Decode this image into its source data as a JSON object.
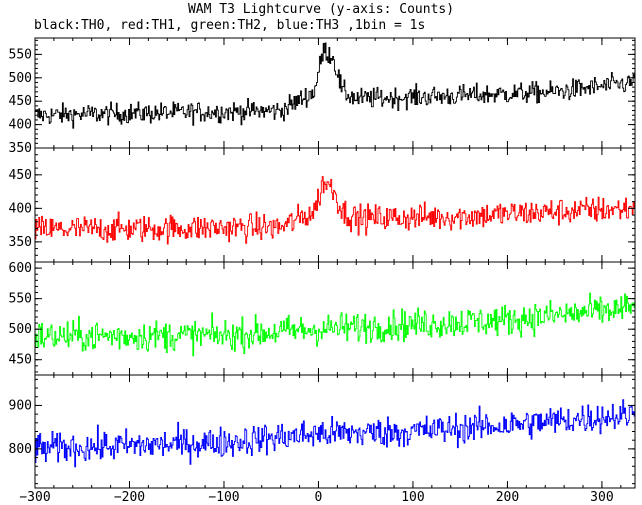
{
  "chart_data": {
    "type": "line",
    "title": "WAM T3 Lightcurve (y-axis: Counts)",
    "subtitle": "black:TH0, red:TH1, green:TH2, blue:TH3 ,1bin = 1s",
    "xlim": [
      -300,
      335
    ],
    "x_ticks": [
      -300,
      -200,
      -100,
      0,
      100,
      200,
      300
    ],
    "x_range_data": [
      -300,
      335
    ],
    "bin_seconds": 1,
    "grid": false,
    "panels": [
      {
        "series": "TH0",
        "color": "#000000",
        "ylim": [
          350,
          585
        ],
        "y_ticks": [
          350,
          400,
          450,
          500,
          550
        ],
        "trend": [
          [
            -300,
            420
          ],
          [
            -40,
            430
          ],
          [
            -5,
            470
          ],
          [
            5,
            560
          ],
          [
            15,
            545
          ],
          [
            25,
            470
          ],
          [
            40,
            455
          ],
          [
            150,
            462
          ],
          [
            250,
            470
          ],
          [
            335,
            490
          ]
        ],
        "noise_amplitude": 22
      },
      {
        "series": "TH1",
        "color": "#ff0000",
        "ylim": [
          320,
          490
        ],
        "y_ticks": [
          350,
          400,
          450
        ],
        "trend": [
          [
            -300,
            368
          ],
          [
            -40,
            372
          ],
          [
            -5,
            395
          ],
          [
            5,
            440
          ],
          [
            15,
            430
          ],
          [
            25,
            395
          ],
          [
            40,
            385
          ],
          [
            150,
            388
          ],
          [
            250,
            395
          ],
          [
            335,
            400
          ]
        ],
        "noise_amplitude": 20
      },
      {
        "series": "TH2",
        "color": "#00ff00",
        "ylim": [
          425,
          610
        ],
        "y_ticks": [
          450,
          500,
          550,
          600
        ],
        "trend": [
          [
            -300,
            488
          ],
          [
            -100,
            490
          ],
          [
            0,
            500
          ],
          [
            100,
            508
          ],
          [
            200,
            515
          ],
          [
            335,
            535
          ]
        ],
        "noise_amplitude": 25
      },
      {
        "series": "TH3",
        "color": "#0000ff",
        "ylim": [
          710,
          970
        ],
        "y_ticks": [
          800,
          900
        ],
        "trend": [
          [
            -300,
            800
          ],
          [
            -100,
            815
          ],
          [
            0,
            835
          ],
          [
            100,
            840
          ],
          [
            200,
            855
          ],
          [
            335,
            880
          ]
        ],
        "noise_amplitude": 35
      }
    ]
  }
}
